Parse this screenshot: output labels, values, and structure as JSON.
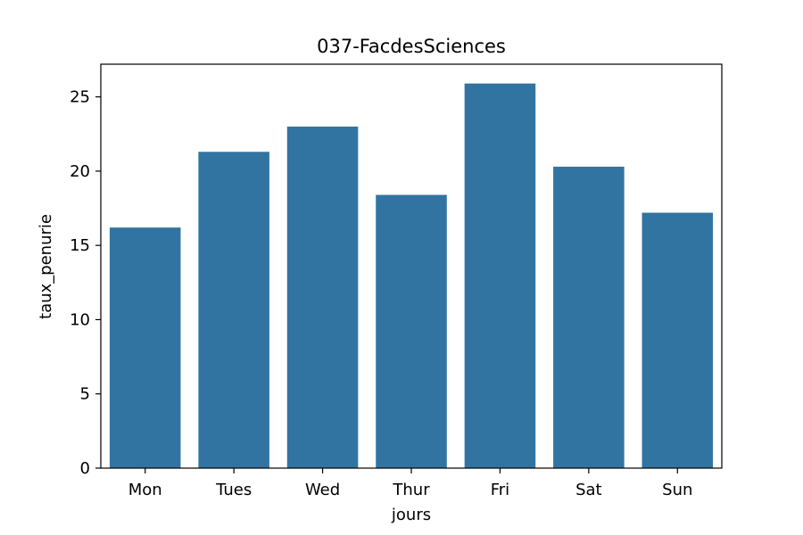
{
  "chart_data": {
    "type": "bar",
    "title": "037-FacdesSciences",
    "xlabel": "jours",
    "ylabel": "taux_penurie",
    "categories": [
      "Mon",
      "Tues",
      "Wed",
      "Thur",
      "Fri",
      "Sat",
      "Sun"
    ],
    "values": [
      16.2,
      21.3,
      23.0,
      18.4,
      25.9,
      20.3,
      17.2
    ],
    "ylim": [
      0,
      27.2
    ],
    "yticks": [
      0,
      5,
      10,
      15,
      20,
      25
    ],
    "grid": false,
    "bar_color": "#3274a1"
  }
}
